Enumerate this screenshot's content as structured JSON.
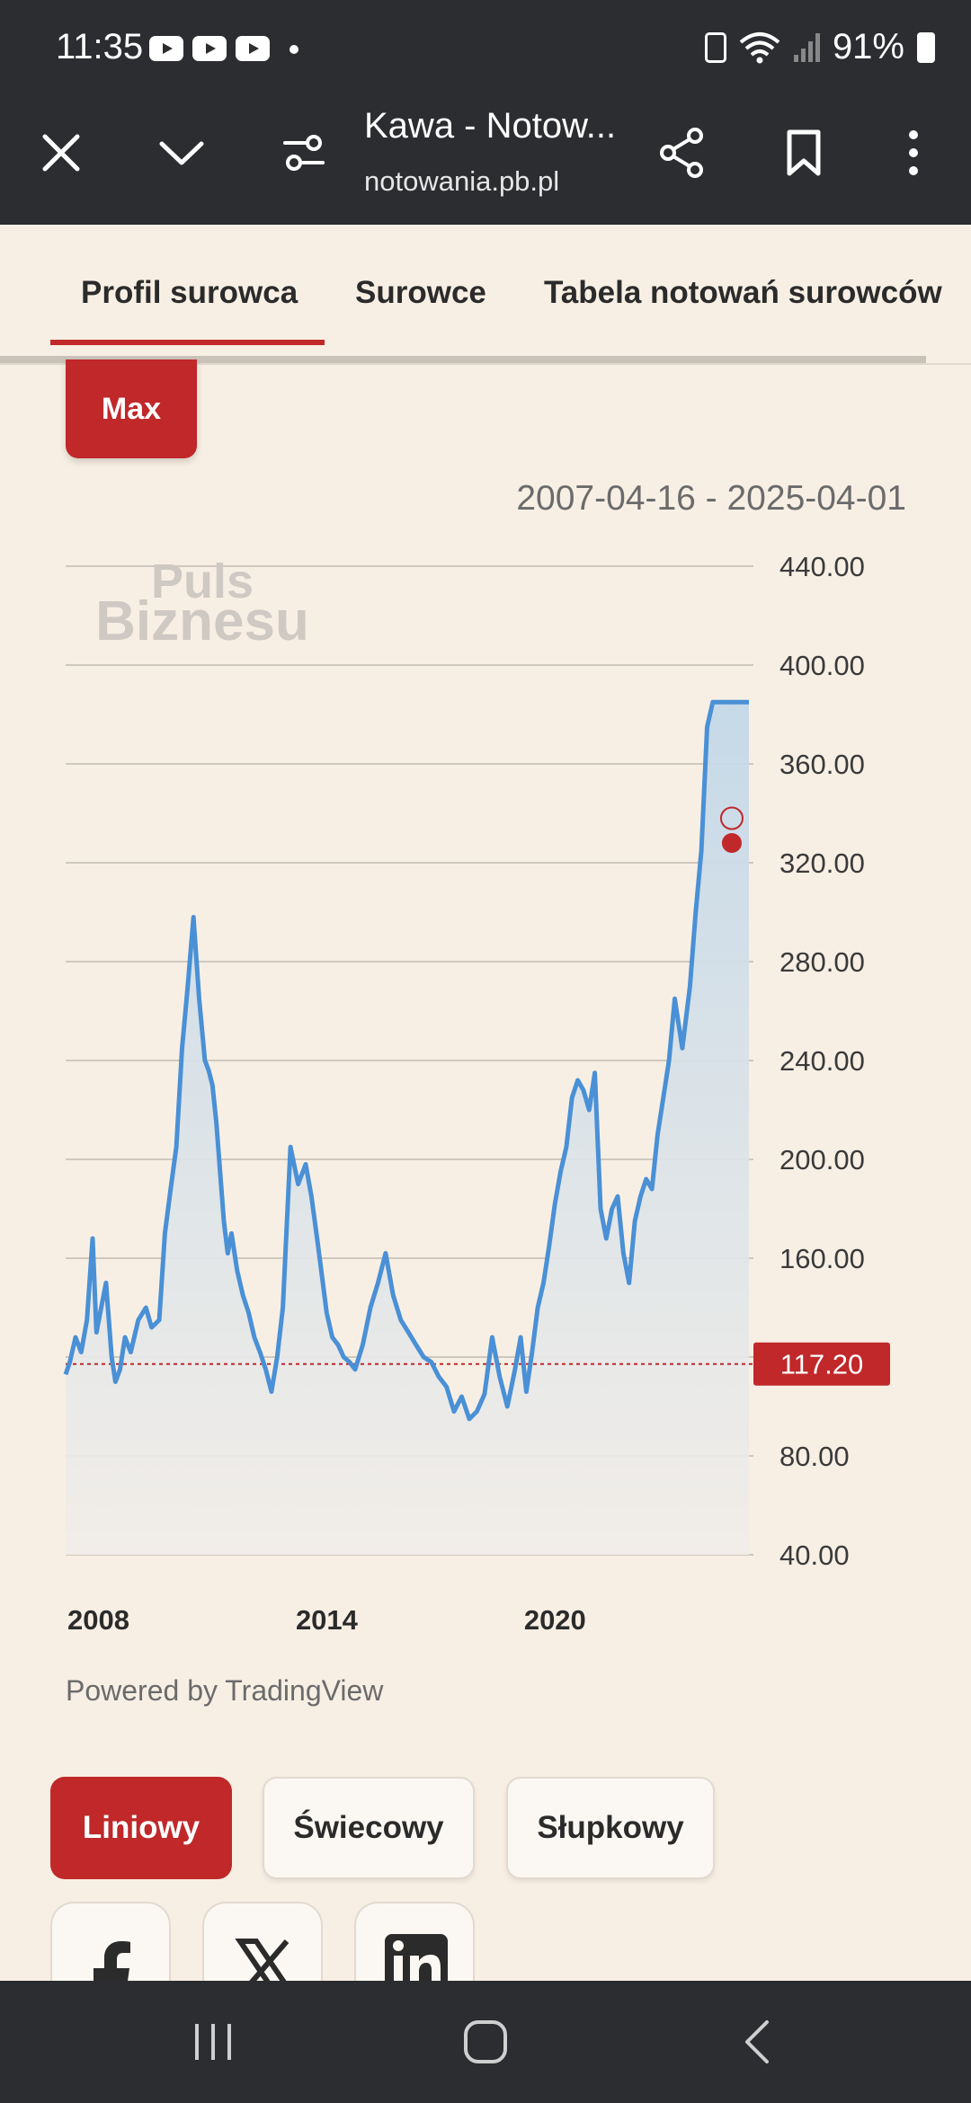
{
  "status_bar": {
    "time": "11:35",
    "battery": "91%"
  },
  "browser": {
    "page_title": "Kawa - Notow...",
    "url": "notowania.pb.pl"
  },
  "tabs": [
    "Profil surowca",
    "Surowce",
    "Tabela notowań surowców"
  ],
  "range_button": "Max",
  "date_range": "2007-04-16 - 2025-04-01",
  "watermark": [
    "Puls",
    "Biznesu"
  ],
  "current_price_label": "117.20",
  "powered_by": "Powered by TradingView",
  "chart_types": [
    "Liniowy",
    "Świecowy",
    "Słupkowy"
  ],
  "share": [
    "facebook-icon",
    "x-icon",
    "linkedin-icon"
  ],
  "colors": {
    "accent": "#c0282a",
    "line": "#4a90d6",
    "fill": "#c7dbea",
    "background": "#f8efe4"
  },
  "chart_data": {
    "type": "area",
    "title": "",
    "xlabel": "",
    "ylabel": "",
    "ylim": [
      40,
      440
    ],
    "y_ticks": [
      "440.00",
      "400.00",
      "360.00",
      "320.00",
      "280.00",
      "240.00",
      "200.00",
      "160.00",
      "80.00",
      "40.00"
    ],
    "x_ticks": [
      "2008",
      "2014",
      "2020"
    ],
    "x_tick_values": [
      2008,
      2014,
      2020
    ],
    "xlim": [
      2007.29,
      2025.25
    ],
    "reference_line": 117.2,
    "markers": [
      {
        "x": 2024.8,
        "y": 338,
        "style": "hollow"
      },
      {
        "x": 2024.8,
        "y": 328,
        "style": "filled"
      }
    ],
    "series": [
      {
        "x": [
          2007.29,
          2007.4,
          2007.55,
          2007.7,
          2007.85,
          2008.0,
          2008.1,
          2008.2,
          2008.35,
          2008.5,
          2008.6,
          2008.72,
          2008.85,
          2009.0,
          2009.2,
          2009.4,
          2009.55,
          2009.75,
          2009.9,
          2010.05,
          2010.2,
          2010.35,
          2010.5,
          2010.65,
          2010.8,
          2010.95,
          2011.05,
          2011.15,
          2011.25,
          2011.35,
          2011.45,
          2011.55,
          2011.65,
          2011.8,
          2011.95,
          2012.1,
          2012.25,
          2012.4,
          2012.55,
          2012.7,
          2012.85,
          2013.0,
          2013.2,
          2013.4,
          2013.6,
          2013.75,
          2013.9,
          2014.05,
          2014.15,
          2014.3,
          2014.45,
          2014.6,
          2014.75,
          2014.9,
          2015.1,
          2015.3,
          2015.5,
          2015.7,
          2015.9,
          2016.1,
          2016.3,
          2016.5,
          2016.7,
          2016.9,
          2017.1,
          2017.3,
          2017.5,
          2017.7,
          2017.9,
          2018.1,
          2018.3,
          2018.5,
          2018.7,
          2018.9,
          2019.1,
          2019.25,
          2019.4,
          2019.55,
          2019.7,
          2019.85,
          2020.0,
          2020.15,
          2020.3,
          2020.45,
          2020.6,
          2020.75,
          2020.9,
          2021.05,
          2021.2,
          2021.35,
          2021.5,
          2021.65,
          2021.8,
          2021.95,
          2022.1,
          2022.25,
          2022.4,
          2022.55,
          2022.7,
          2022.85,
          2023.0,
          2023.15,
          2023.3,
          2023.5,
          2023.7,
          2023.85,
          2024.0,
          2024.15,
          2024.3,
          2024.45,
          2024.6,
          2024.75,
          2024.9,
          2025.05,
          2025.25
        ],
        "y": [
          113,
          118,
          128,
          122,
          135,
          168,
          130,
          138,
          150,
          120,
          110,
          115,
          128,
          122,
          135,
          140,
          132,
          135,
          170,
          188,
          205,
          245,
          270,
          298,
          265,
          240,
          236,
          230,
          215,
          195,
          175,
          162,
          170,
          155,
          145,
          138,
          128,
          122,
          115,
          106,
          120,
          140,
          205,
          190,
          198,
          185,
          168,
          150,
          138,
          128,
          125,
          120,
          118,
          115,
          125,
          140,
          150,
          162,
          145,
          135,
          130,
          125,
          120,
          118,
          112,
          108,
          98,
          104,
          95,
          98,
          105,
          128,
          112,
          100,
          115,
          128,
          106,
          122,
          140,
          150,
          165,
          182,
          195,
          205,
          225,
          232,
          228,
          220,
          235,
          180,
          168,
          180,
          185,
          162,
          150,
          175,
          185,
          192,
          188,
          210,
          225,
          240,
          265,
          245,
          270,
          300,
          325,
          375,
          385,
          385,
          385,
          385,
          385,
          385,
          385
        ],
        "values_note": ""
      }
    ]
  }
}
